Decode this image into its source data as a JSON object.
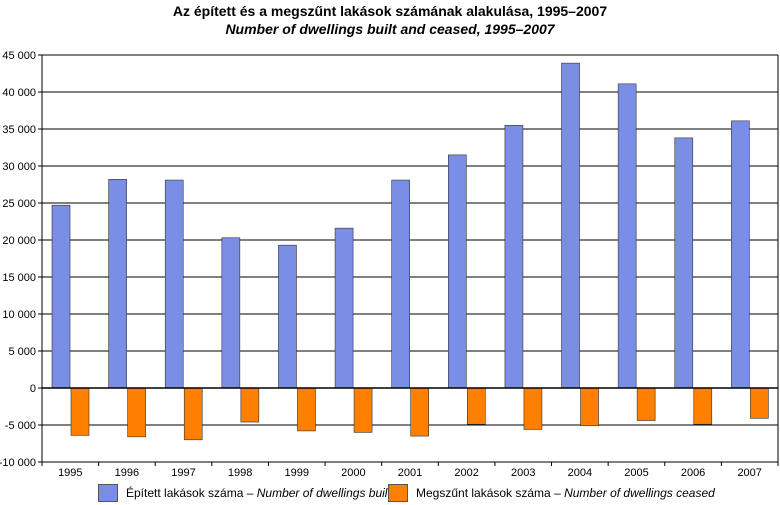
{
  "chart_data": {
    "type": "bar",
    "title": "Az épített és a megszűnt lakások számának alakulása, 1995–2007",
    "subtitle": "Number of dwellings built and ceased, 1995–2007",
    "categories": [
      "1995",
      "1996",
      "1997",
      "1998",
      "1999",
      "2000",
      "2001",
      "2002",
      "2003",
      "2004",
      "2005",
      "2006",
      "2007"
    ],
    "series": [
      {
        "name_hu": "Épített lakások száma",
        "name_en": "Number of dwellings built",
        "color": "#7b8ee6",
        "values": [
          24700,
          28200,
          28100,
          20300,
          19300,
          21600,
          28100,
          31500,
          35500,
          43900,
          41100,
          33800,
          36100
        ]
      },
      {
        "name_hu": "Megszűnt lakások száma",
        "name_en": "Number of dwellings ceased",
        "color": "#ff8000",
        "values": [
          -6400,
          -6600,
          -7000,
          -4600,
          -5800,
          -6000,
          -6500,
          -4900,
          -5600,
          -5100,
          -4400,
          -4900,
          -4100
        ]
      }
    ],
    "ylim": [
      -10000,
      45000
    ],
    "yticks": [
      -10000,
      -5000,
      0,
      5000,
      10000,
      15000,
      20000,
      25000,
      30000,
      35000,
      40000,
      45000
    ],
    "ytick_labels": [
      "-10 000",
      "-5 000",
      "0",
      "5 000",
      "10 000",
      "15 000",
      "20 000",
      "25 000",
      "30 000",
      "35 000",
      "40 000",
      "45 000"
    ],
    "grid": true,
    "legend_position": "bottom",
    "legend_separator": " – "
  }
}
